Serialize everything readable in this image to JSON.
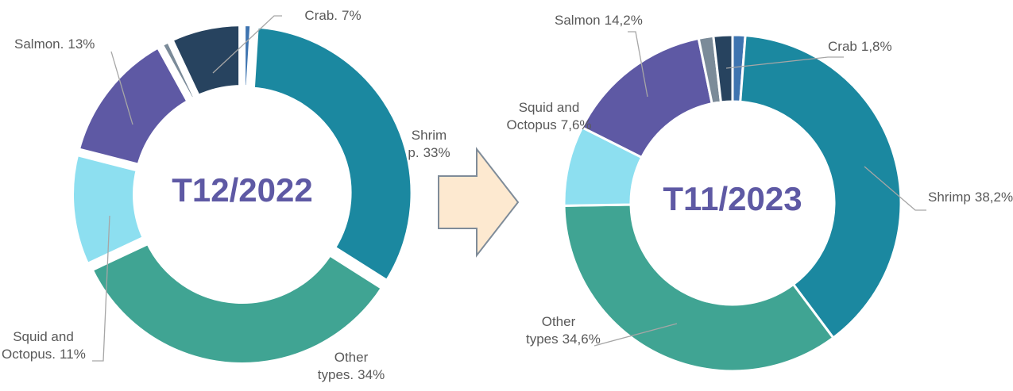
{
  "chart_data": [
    {
      "type": "donut",
      "center_label": "T12/2022",
      "categories": [
        null,
        "Shrim p.",
        "Other types.",
        "Squid and Octopus.",
        "Salmon.",
        null,
        "Crab."
      ],
      "values": [
        1,
        33,
        34,
        11,
        13,
        1,
        7
      ],
      "value_labels": [
        null,
        "33%",
        "34%",
        "11%",
        "13%",
        null,
        "7%"
      ],
      "colors": [
        "#3e74b0",
        "#1b88a0",
        "#40a493",
        "#8ddff0",
        "#5e59a4",
        "#7b8b99",
        "#27435f"
      ]
    },
    {
      "type": "donut",
      "center_label": "T11/2023",
      "categories": [
        null,
        "Shrimp",
        "Other types",
        "Squid and Octopus",
        "Salmon",
        null,
        "Crab"
      ],
      "values": [
        1.2,
        38.2,
        34.6,
        7.6,
        14.2,
        1.4,
        1.8
      ],
      "value_labels": [
        null,
        "38,2%",
        "34,6%",
        "7,6%",
        "14,2%",
        null,
        "1,8%"
      ],
      "colors": [
        "#3e74b0",
        "#1b88a0",
        "#40a493",
        "#8ddff0",
        "#5e59a4",
        "#7b8b99",
        "#27435f"
      ]
    }
  ]
}
